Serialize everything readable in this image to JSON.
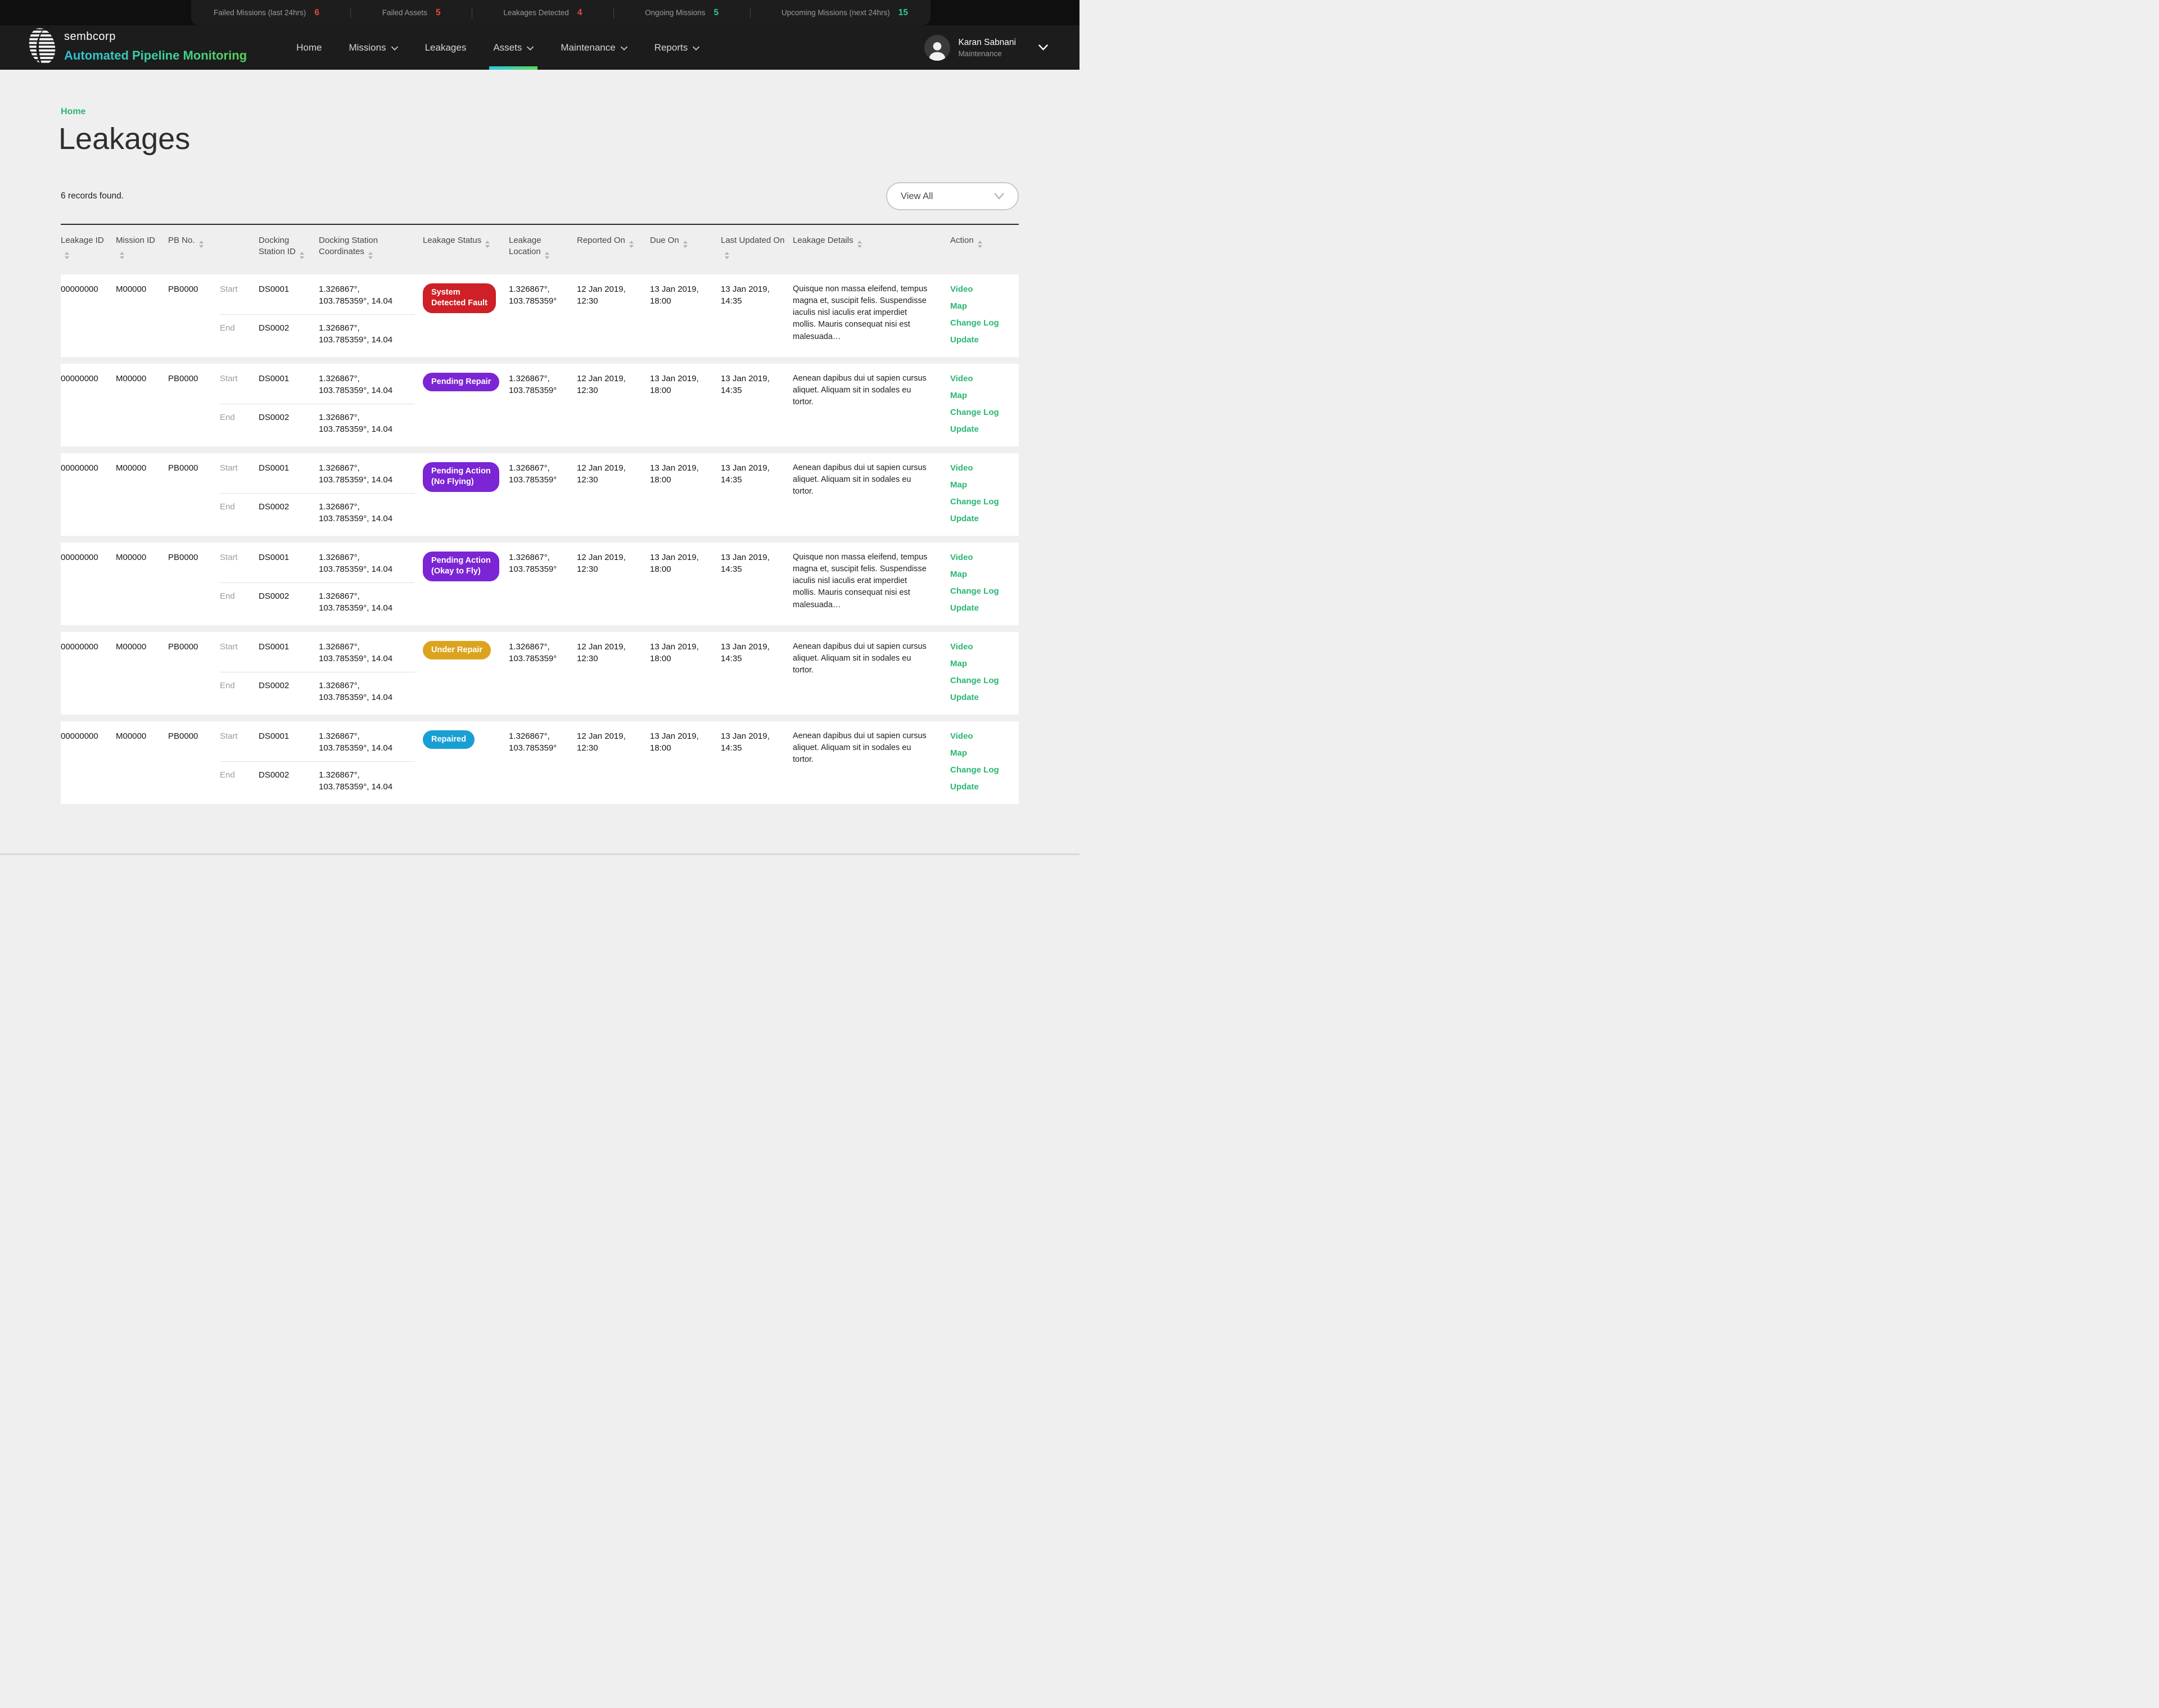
{
  "topbar": {
    "stats": [
      {
        "label": "Failed Missions (last 24hrs)",
        "value": "6",
        "value_color": "#e8473a"
      },
      {
        "label": "Failed Assets",
        "value": "5",
        "value_color": "#e8473a"
      },
      {
        "label": "Leakages Detected",
        "value": "4",
        "value_color": "#e8473a"
      },
      {
        "label": "Ongoing Missions",
        "value": "5",
        "value_color": "#2ecb8d"
      },
      {
        "label": "Upcoming Missions (next 24hrs)",
        "value": "15",
        "value_color": "#2ecb8d"
      }
    ]
  },
  "brand": {
    "logo_text": "sembcorp",
    "app_title": "Automated Pipeline Monitoring"
  },
  "nav": {
    "items": [
      {
        "label": "Home",
        "caret": false,
        "active": false
      },
      {
        "label": "Missions",
        "caret": true,
        "active": false
      },
      {
        "label": "Leakages",
        "caret": false,
        "active": false
      },
      {
        "label": "Assets",
        "caret": true,
        "active": true
      },
      {
        "label": "Maintenance",
        "caret": true,
        "active": false
      },
      {
        "label": "Reports",
        "caret": true,
        "active": false
      }
    ]
  },
  "user": {
    "name": "Karan Sabnani",
    "role": "Maintenance"
  },
  "page": {
    "breadcrumb": "Home",
    "title": "Leakages",
    "records_text": "6 records found."
  },
  "filter": {
    "selected": "View All"
  },
  "theme": {
    "accent_green": "#2bb673",
    "underline_gradient": [
      "#2fc8e6",
      "#5bd65b"
    ],
    "status_colors": {
      "system_detected_fault": "#ce2026",
      "pending": "#7b25d4",
      "under_repair": "#dca41e",
      "repaired": "#189fd3"
    }
  },
  "table": {
    "columns": [
      {
        "label": "Leakage ID",
        "sortable": true
      },
      {
        "label": "Mission ID",
        "sortable": true
      },
      {
        "label": "PB No.",
        "sortable": true
      },
      {
        "label": "",
        "sortable": false
      },
      {
        "label": "Docking Station ID",
        "sortable": true
      },
      {
        "label": "Docking Station Coordinates",
        "sortable": true
      },
      {
        "label": "Leakage Status",
        "sortable": true
      },
      {
        "label": "Leakage Location",
        "sortable": true
      },
      {
        "label": "Reported On",
        "sortable": true
      },
      {
        "label": "Due On",
        "sortable": true
      },
      {
        "label": "Last Updated On",
        "sortable": true
      },
      {
        "label": "Leakage Details",
        "sortable": true
      },
      {
        "label": "Action",
        "sortable": true
      }
    ],
    "rows": [
      {
        "leakage_id": "00000000",
        "mission_id": "M00000",
        "pb_no": "PB0000",
        "start": {
          "label": "Start",
          "station_id": "DS0001",
          "coordinates": "1.326867°,\n103.785359°, 14.04"
        },
        "end": {
          "label": "End",
          "station_id": "DS0002",
          "coordinates": "1.326867°,\n103.785359°, 14.04"
        },
        "status": {
          "label": "System\nDetected Fault",
          "color": "#ce2026"
        },
        "location": "1.326867°,\n103.785359°",
        "reported_on": "12 Jan 2019, 12:30",
        "due_on": "13 Jan 2019, 18:00",
        "last_updated_on": "13 Jan 2019, 14:35",
        "details": "Quisque non massa eleifend, tempus magna et, suscipit felis. Suspendisse iaculis nisl iaculis erat imperdiet mollis. Mauris consequat nisi est malesuada…",
        "actions": [
          "Video",
          "Map",
          "Change Log",
          "Update"
        ]
      },
      {
        "leakage_id": "00000000",
        "mission_id": "M00000",
        "pb_no": "PB0000",
        "start": {
          "label": "Start",
          "station_id": "DS0001",
          "coordinates": "1.326867°,\n103.785359°, 14.04"
        },
        "end": {
          "label": "End",
          "station_id": "DS0002",
          "coordinates": "1.326867°,\n103.785359°, 14.04"
        },
        "status": {
          "label": "Pending Repair",
          "color": "#7b25d4"
        },
        "location": "1.326867°,\n103.785359°",
        "reported_on": "12 Jan 2019, 12:30",
        "due_on": "13 Jan 2019, 18:00",
        "last_updated_on": "13 Jan 2019, 14:35",
        "details": "Aenean dapibus dui ut sapien cursus aliquet. Aliquam sit in sodales eu tortor.",
        "actions": [
          "Video",
          "Map",
          "Change Log",
          "Update"
        ]
      },
      {
        "leakage_id": "00000000",
        "mission_id": "M00000",
        "pb_no": "PB0000",
        "start": {
          "label": "Start",
          "station_id": "DS0001",
          "coordinates": "1.326867°,\n103.785359°, 14.04"
        },
        "end": {
          "label": "End",
          "station_id": "DS0002",
          "coordinates": "1.326867°,\n103.785359°, 14.04"
        },
        "status": {
          "label": "Pending Action\n(No Flying)",
          "color": "#7b25d4"
        },
        "location": "1.326867°,\n103.785359°",
        "reported_on": "12 Jan 2019, 12:30",
        "due_on": "13 Jan 2019, 18:00",
        "last_updated_on": "13 Jan 2019, 14:35",
        "details": "Aenean dapibus dui ut sapien cursus aliquet. Aliquam sit in sodales eu tortor.",
        "actions": [
          "Video",
          "Map",
          "Change Log",
          "Update"
        ]
      },
      {
        "leakage_id": "00000000",
        "mission_id": "M00000",
        "pb_no": "PB0000",
        "start": {
          "label": "Start",
          "station_id": "DS0001",
          "coordinates": "1.326867°,\n103.785359°, 14.04"
        },
        "end": {
          "label": "End",
          "station_id": "DS0002",
          "coordinates": "1.326867°,\n103.785359°, 14.04"
        },
        "status": {
          "label": "Pending Action\n(Okay to Fly)",
          "color": "#7b25d4"
        },
        "location": "1.326867°,\n103.785359°",
        "reported_on": "12 Jan 2019, 12:30",
        "due_on": "13 Jan 2019, 18:00",
        "last_updated_on": "13 Jan 2019, 14:35",
        "details": "Quisque non massa eleifend, tempus magna et, suscipit felis. Suspendisse iaculis nisl iaculis erat imperdiet mollis. Mauris consequat nisi est malesuada…",
        "actions": [
          "Video",
          "Map",
          "Change Log",
          "Update"
        ]
      },
      {
        "leakage_id": "00000000",
        "mission_id": "M00000",
        "pb_no": "PB0000",
        "start": {
          "label": "Start",
          "station_id": "DS0001",
          "coordinates": "1.326867°,\n103.785359°, 14.04"
        },
        "end": {
          "label": "End",
          "station_id": "DS0002",
          "coordinates": "1.326867°,\n103.785359°, 14.04"
        },
        "status": {
          "label": "Under Repair",
          "color": "#dca41e"
        },
        "location": "1.326867°,\n103.785359°",
        "reported_on": "12 Jan 2019, 12:30",
        "due_on": "13 Jan 2019, 18:00",
        "last_updated_on": "13 Jan 2019, 14:35",
        "details": "Aenean dapibus dui ut sapien cursus aliquet. Aliquam sit in sodales eu tortor.",
        "actions": [
          "Video",
          "Map",
          "Change Log",
          "Update"
        ]
      },
      {
        "leakage_id": "00000000",
        "mission_id": "M00000",
        "pb_no": "PB0000",
        "start": {
          "label": "Start",
          "station_id": "DS0001",
          "coordinates": "1.326867°,\n103.785359°, 14.04"
        },
        "end": {
          "label": "End",
          "station_id": "DS0002",
          "coordinates": "1.326867°,\n103.785359°, 14.04"
        },
        "status": {
          "label": "Repaired",
          "color": "#189fd3"
        },
        "location": "1.326867°,\n103.785359°",
        "reported_on": "12 Jan 2019, 12:30",
        "due_on": "13 Jan 2019, 18:00",
        "last_updated_on": "13 Jan 2019, 14:35",
        "details": "Aenean dapibus dui ut sapien cursus aliquet. Aliquam sit in sodales eu tortor.",
        "actions": [
          "Video",
          "Map",
          "Change Log",
          "Update"
        ]
      }
    ]
  }
}
